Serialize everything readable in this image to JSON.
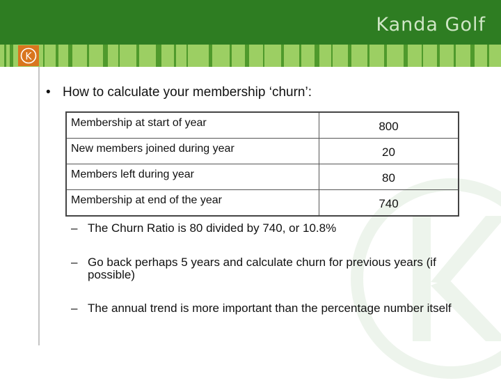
{
  "header": {
    "brand": "Kanda Golf",
    "logo_letter": "K"
  },
  "colors": {
    "header_green": "#2e7d22",
    "stripe_light": "#9ccf63",
    "stripe_dark": "#4f9a2c",
    "logo_orange": "#d9761e"
  },
  "content": {
    "heading": "How to calculate your membership ‘churn’:",
    "table": [
      {
        "label": "Membership at start of year",
        "value": "800"
      },
      {
        "label": "New members joined during year",
        "value": "20"
      },
      {
        "label": "Members left during year",
        "value": "80"
      },
      {
        "label": "Membership at end of the year",
        "value": "740"
      }
    ],
    "sub_bullets": [
      "The Churn Ratio is 80 divided by 740, or 10.8%",
      "Go back perhaps 5 years and calculate churn for previous years (if possible)",
      "The annual trend is more important than the percentage number itself"
    ]
  }
}
